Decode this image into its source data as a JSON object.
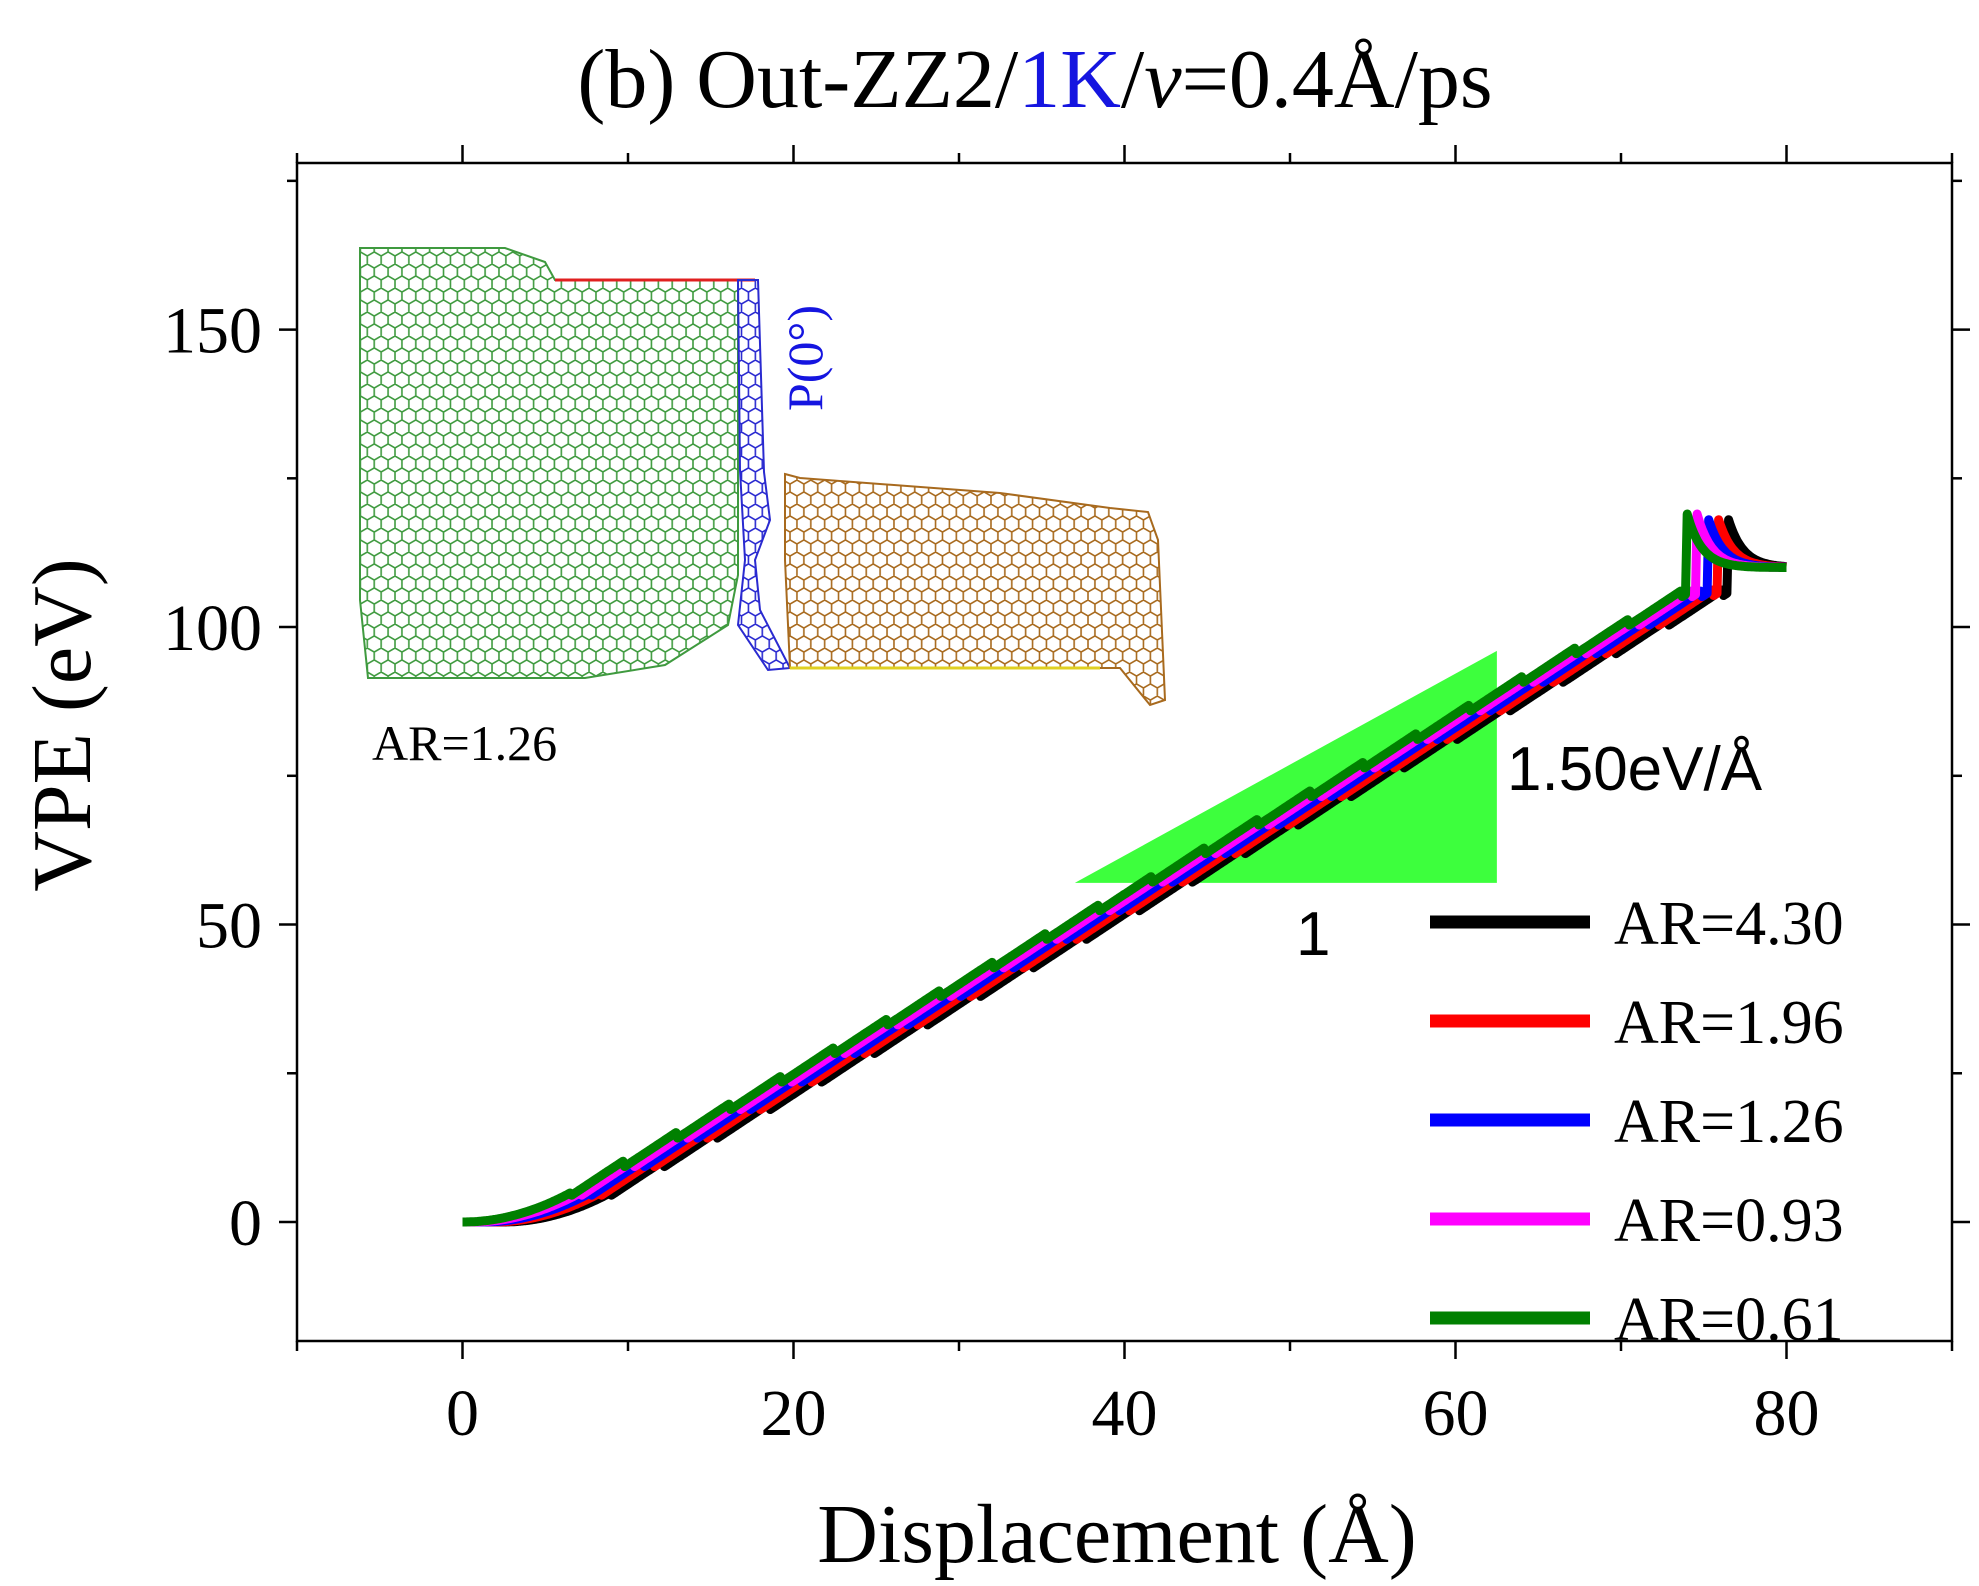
{
  "chart_data": {
    "type": "line",
    "title": {
      "parts": [
        {
          "text": "(b) Out-ZZ2/",
          "color": "#000000",
          "italic": false
        },
        {
          "text": "1K",
          "color": "#1515e0",
          "italic": false
        },
        {
          "text": "/",
          "color": "#000000",
          "italic": false
        },
        {
          "text": "v",
          "color": "#000000",
          "italic": true
        },
        {
          "text": "=0.4Å/ps",
          "color": "#000000",
          "italic": false
        }
      ]
    },
    "xlabel": "Displacement (Å)",
    "ylabel": "VPE (eV)",
    "xlim": [
      -10,
      90
    ],
    "ylim": [
      -20,
      178
    ],
    "x_ticks": [
      0,
      20,
      40,
      60,
      80
    ],
    "x_tick_labels": [
      "0",
      "20",
      "40",
      "60",
      "80"
    ],
    "x_minor_ticks": [
      -10,
      10,
      30,
      50,
      70,
      90
    ],
    "y_ticks": [
      0,
      50,
      100,
      150
    ],
    "y_tick_labels": [
      "0",
      "50",
      "100",
      "150"
    ],
    "y_minor_ticks": [
      -25,
      25,
      75,
      125,
      175
    ],
    "grid": false,
    "legend_position": "bottom-right",
    "series": [
      {
        "name": "AR=4.30",
        "color": "#000000",
        "shift": 2.4,
        "end_x": 80
      },
      {
        "name": "AR=1.96",
        "color": "#ff0000",
        "shift": 1.8,
        "end_x": 80
      },
      {
        "name": "AR=1.26",
        "color": "#0000ff",
        "shift": 1.2,
        "end_x": 80
      },
      {
        "name": "AR=0.93",
        "color": "#ff00ff",
        "shift": 0.6,
        "end_x": 80
      },
      {
        "name": "AR=0.61",
        "color": "#008000",
        "shift": 0.0,
        "end_x": 80
      }
    ],
    "curve_model": {
      "onset_x": 6.5,
      "slope": 1.5,
      "peak_x": 74,
      "peak_y": 119,
      "plateau_y": 110,
      "sawtooth_period": 3.2,
      "sawtooth_amp": 1.1
    },
    "slope_annotation": {
      "triangle": [
        [
          37,
          57
        ],
        [
          62.5,
          57
        ],
        [
          62.5,
          96
        ]
      ],
      "fill_color": "#3dff3d",
      "slope_label": "1.50eV/Å",
      "run_label": "1"
    },
    "inset": {
      "label": "AR=1.26",
      "angle_label": "P(0°)",
      "angle_label_color": "#1515e0",
      "colors": {
        "left_sheet": "#3f9a3f",
        "junction": "#2a2ad0",
        "right_sheet": "#a86a1e",
        "edge_red": "#e02020",
        "edge_yellow": "#e0d020"
      }
    }
  }
}
